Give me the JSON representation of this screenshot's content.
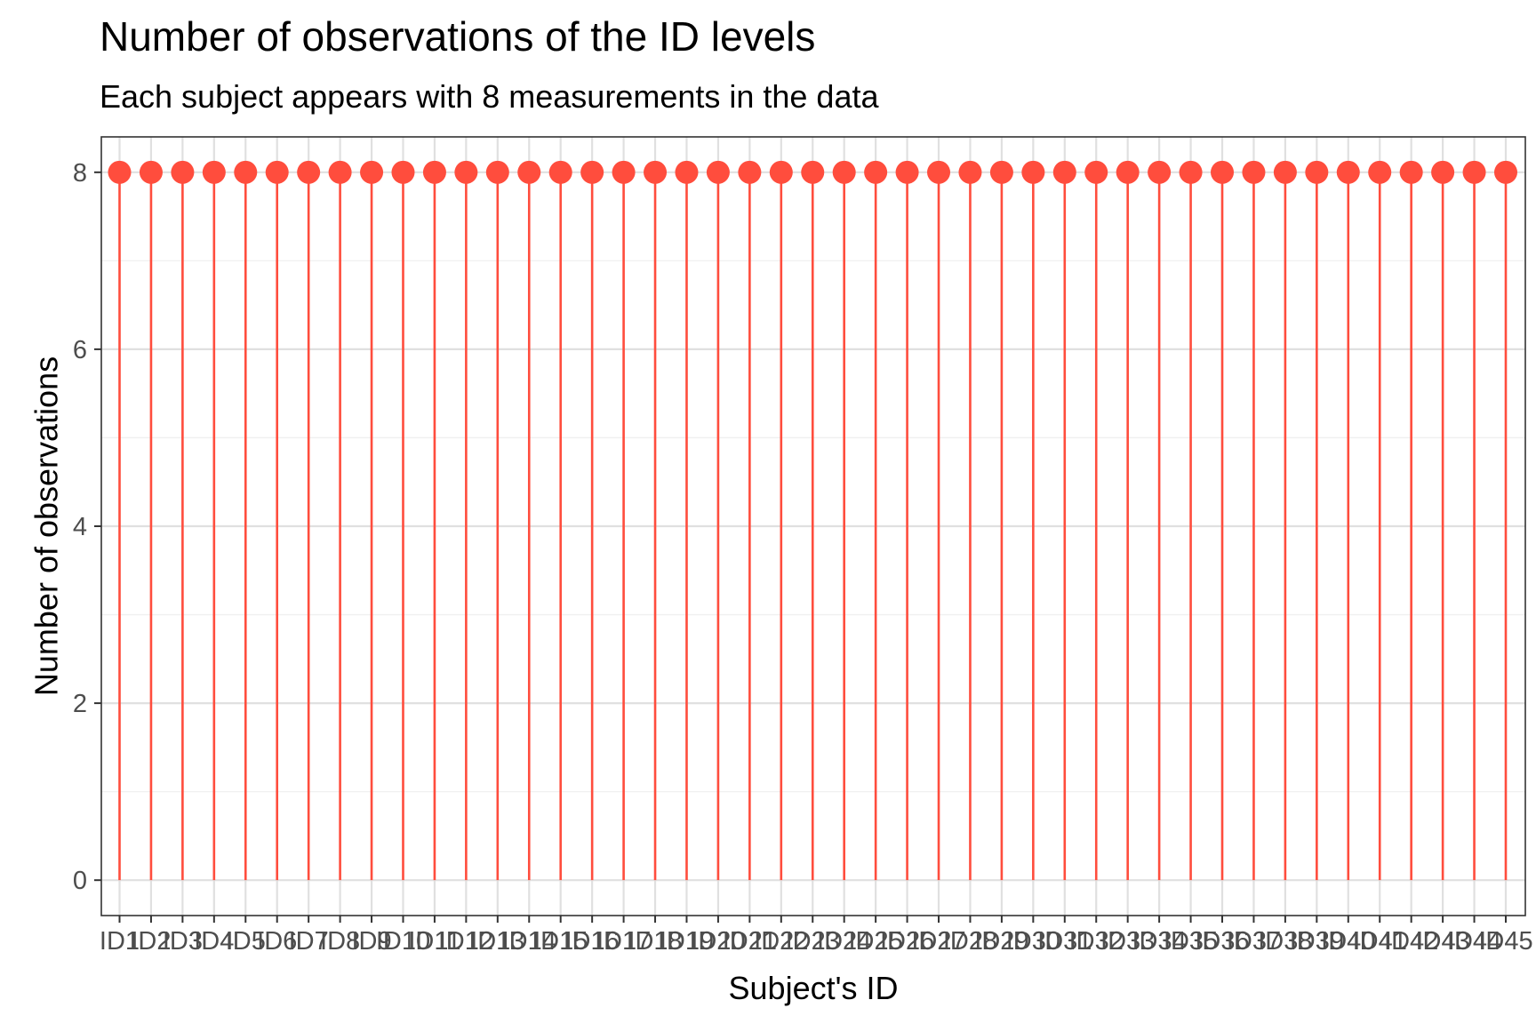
{
  "chart_data": {
    "type": "lollipop",
    "title": "Number of observations of the ID levels",
    "subtitle": "Each subject appears with 8 measurements in the data",
    "xlabel": "Subject's ID",
    "ylabel": "Number of observations",
    "categories": [
      "ID1",
      "ID2",
      "ID3",
      "ID4",
      "ID5",
      "ID6",
      "ID7",
      "ID8",
      "ID9",
      "ID10",
      "ID11",
      "ID12",
      "ID13",
      "ID14",
      "ID15",
      "ID16",
      "ID17",
      "ID18",
      "ID19",
      "ID20",
      "ID21",
      "ID22",
      "ID23",
      "ID24",
      "ID25",
      "ID26",
      "ID27",
      "ID28",
      "ID29",
      "ID30",
      "ID31",
      "ID32",
      "ID33",
      "ID34",
      "ID35",
      "ID36",
      "ID37",
      "ID38",
      "ID39",
      "ID40",
      "ID41",
      "ID42",
      "ID43",
      "ID44",
      "ID45"
    ],
    "values": [
      8,
      8,
      8,
      8,
      8,
      8,
      8,
      8,
      8,
      8,
      8,
      8,
      8,
      8,
      8,
      8,
      8,
      8,
      8,
      8,
      8,
      8,
      8,
      8,
      8,
      8,
      8,
      8,
      8,
      8,
      8,
      8,
      8,
      8,
      8,
      8,
      8,
      8,
      8,
      8,
      8,
      8,
      8,
      8,
      8
    ],
    "yticks": [
      0,
      2,
      4,
      6,
      8
    ],
    "ylim": [
      -0.4,
      8.4
    ],
    "grid": true,
    "legend": "none",
    "colors": {
      "mark": "#ff4d3d",
      "grid_major": "#e0e0e0",
      "grid_minor": "#f0f0f0",
      "border": "#333333",
      "tick_text": "#4d4d4d"
    }
  }
}
